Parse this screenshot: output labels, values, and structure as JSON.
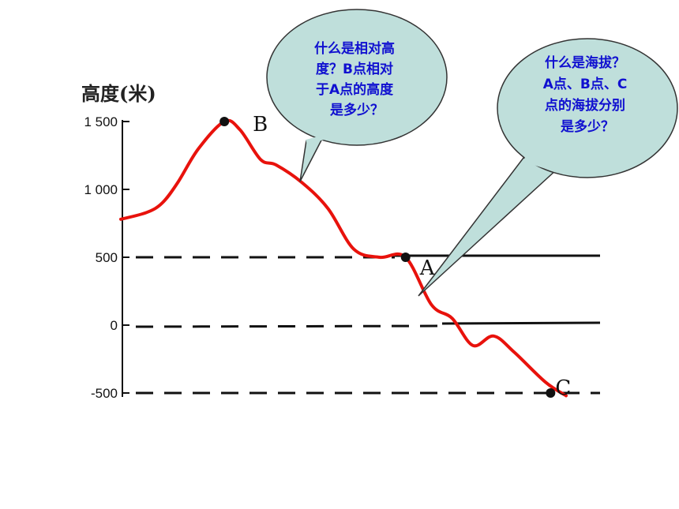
{
  "chart_data": {
    "type": "line",
    "ylabel": "高度(米)",
    "y_ticks": [
      "1 500",
      "1 000",
      "500",
      "0",
      "-500"
    ],
    "ylim": [
      -500,
      1500
    ],
    "reference_lines": [
      500,
      0,
      -500
    ],
    "profile": [
      {
        "x": 0,
        "y": 780
      },
      {
        "x": 5,
        "y": 830
      },
      {
        "x": 8,
        "y": 900
      },
      {
        "x": 11,
        "y": 1050
      },
      {
        "x": 15,
        "y": 1300
      },
      {
        "x": 20,
        "y": 1500
      },
      {
        "x": 23,
        "y": 1440
      },
      {
        "x": 27,
        "y": 1220
      },
      {
        "x": 30,
        "y": 1180
      },
      {
        "x": 35,
        "y": 1050
      },
      {
        "x": 40,
        "y": 860
      },
      {
        "x": 45,
        "y": 560
      },
      {
        "x": 50,
        "y": 500
      },
      {
        "x": 55,
        "y": 500
      },
      {
        "x": 60,
        "y": 150
      },
      {
        "x": 64,
        "y": 50
      },
      {
        "x": 68,
        "y": -150
      },
      {
        "x": 72,
        "y": -80
      },
      {
        "x": 76,
        "y": -200
      },
      {
        "x": 82,
        "y": -420
      },
      {
        "x": 86,
        "y": -520
      }
    ],
    "points": [
      {
        "label": "B",
        "x": 20,
        "y": 1500
      },
      {
        "label": "A",
        "x": 55,
        "y": 500
      },
      {
        "label": "C",
        "x": 83,
        "y": -500
      }
    ]
  },
  "bubbles": [
    {
      "lines": [
        "什么是相对高",
        "度？B点相对",
        "于A点的高度",
        "是多少？"
      ]
    },
    {
      "lines": [
        "什么是海拔？",
        "A点、B点、C",
        "点的海拔分别",
        "是多少？"
      ]
    }
  ],
  "colors": {
    "profile": "#e8120c",
    "bubble_fill": "#bfdfdb",
    "bubble_text": "#1010d0"
  }
}
